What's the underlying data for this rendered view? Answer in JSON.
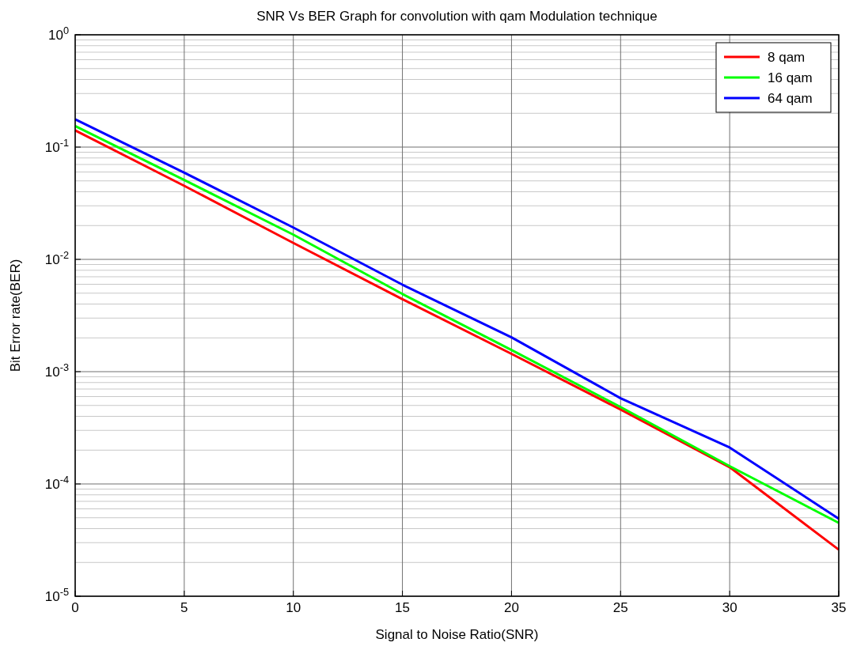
{
  "chart_data": {
    "type": "line",
    "title": "SNR Vs BER Graph for convolution with qam Modulation technique",
    "xlabel": "Signal to Noise Ratio(SNR)",
    "ylabel": "Bit Error rate(BER)",
    "x": [
      0,
      5,
      10,
      15,
      20,
      25,
      30,
      35
    ],
    "series": [
      {
        "name": "8 qam",
        "color": "#ff0000",
        "values": [
          0.141,
          0.0452,
          0.014,
          0.00442,
          0.00144,
          0.00046,
          0.000141,
          2.6e-05
        ]
      },
      {
        "name": "16 qam",
        "color": "#00ff00",
        "values": [
          0.154,
          0.0509,
          0.0166,
          0.00492,
          0.00156,
          0.000484,
          0.000144,
          4.5e-05
        ]
      },
      {
        "name": "64 qam",
        "color": "#0000ff",
        "values": [
          0.177,
          0.0592,
          0.0192,
          0.00595,
          0.00202,
          0.00058,
          0.000211,
          4.9e-05
        ]
      }
    ],
    "xlim": [
      0,
      35
    ],
    "xticks": [
      0,
      5,
      10,
      15,
      20,
      25,
      30,
      35
    ],
    "ylim": [
      1e-05,
      1
    ],
    "yticks": [
      {
        "value": 1e-05,
        "label": "10$^{-5}$"
      },
      {
        "value": 0.0001,
        "label": "10$^{-4}$"
      },
      {
        "value": 0.001,
        "label": "10$^{-3}$"
      },
      {
        "value": 0.01,
        "label": "10$^{-2}$"
      },
      {
        "value": 0.1,
        "label": "10$^{-1}$"
      },
      {
        "value": 1,
        "label": "10$^{0}$"
      }
    ],
    "log": "y",
    "grid": true,
    "legend": "top right",
    "line_style": "solid",
    "marker": "none"
  }
}
